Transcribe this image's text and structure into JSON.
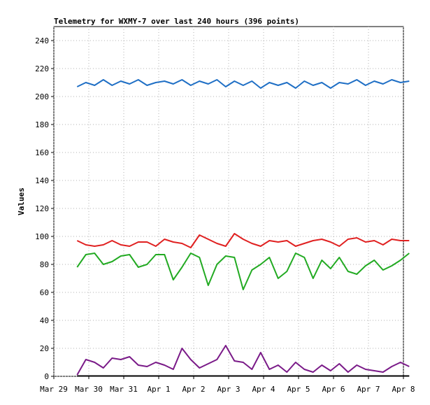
{
  "chart_data": {
    "type": "line",
    "title": "Telemetry for WXMY-7 over last 240 hours (396 points)",
    "xlabel": "",
    "ylabel": "Values",
    "ylim": [
      0,
      250
    ],
    "yticks": [
      0,
      20,
      40,
      60,
      80,
      100,
      120,
      140,
      160,
      180,
      200,
      220,
      240
    ],
    "xlim": [
      "2025-03-29T00:00",
      "2025-04-08T00:00"
    ],
    "xticks": [
      {
        "date": "2025-03-29",
        "label": "Mar 29"
      },
      {
        "date": "2025-03-30",
        "label": "Mar 30"
      },
      {
        "date": "2025-03-31",
        "label": "Mar 31"
      },
      {
        "date": "2025-04-01",
        "label": "Apr 1"
      },
      {
        "date": "2025-04-02",
        "label": "Apr 2"
      },
      {
        "date": "2025-04-03",
        "label": "Apr 3"
      },
      {
        "date": "2025-04-04",
        "label": "Apr 4"
      },
      {
        "date": "2025-04-05",
        "label": "Apr 5"
      },
      {
        "date": "2025-04-06",
        "label": "Apr 6"
      },
      {
        "date": "2025-04-07",
        "label": "Apr 7"
      },
      {
        "date": "2025-04-08",
        "label": "Apr 8"
      }
    ],
    "x": [
      "2025-03-29T16:00",
      "2025-03-29T22:00",
      "2025-03-30T04:00",
      "2025-03-30T10:00",
      "2025-03-30T16:00",
      "2025-03-30T22:00",
      "2025-03-31T04:00",
      "2025-03-31T10:00",
      "2025-03-31T16:00",
      "2025-03-31T22:00",
      "2025-04-01T04:00",
      "2025-04-01T10:00",
      "2025-04-01T16:00",
      "2025-04-01T22:00",
      "2025-04-02T04:00",
      "2025-04-02T10:00",
      "2025-04-02T16:00",
      "2025-04-02T22:00",
      "2025-04-03T04:00",
      "2025-04-03T10:00",
      "2025-04-03T16:00",
      "2025-04-03T22:00",
      "2025-04-04T04:00",
      "2025-04-04T10:00",
      "2025-04-04T16:00",
      "2025-04-04T22:00",
      "2025-04-05T04:00",
      "2025-04-05T10:00",
      "2025-04-05T16:00",
      "2025-04-05T22:00",
      "2025-04-06T04:00",
      "2025-04-06T10:00",
      "2025-04-06T16:00",
      "2025-04-06T22:00",
      "2025-04-07T04:00",
      "2025-04-07T10:00",
      "2025-04-07T16:00",
      "2025-04-07T22:00",
      "2025-04-08T04:00"
    ],
    "series": [
      {
        "color": "#1f6fc5",
        "values": [
          207,
          210,
          208,
          212,
          208,
          211,
          209,
          212,
          208,
          210,
          211,
          209,
          212,
          208,
          211,
          209,
          212,
          207,
          211,
          208,
          211,
          206,
          210,
          208,
          210,
          206,
          211,
          208,
          210,
          206,
          210,
          209,
          212,
          208,
          211,
          209,
          212,
          210,
          211
        ]
      },
      {
        "color": "#e02020",
        "values": [
          97,
          94,
          93,
          94,
          97,
          94,
          93,
          96,
          96,
          93,
          98,
          96,
          95,
          92,
          101,
          98,
          95,
          93,
          102,
          98,
          95,
          93,
          97,
          96,
          97,
          93,
          95,
          97,
          98,
          96,
          93,
          98,
          99,
          96,
          97,
          94,
          98,
          97,
          97
        ]
      },
      {
        "color": "#22aa22",
        "values": [
          78,
          87,
          88,
          80,
          82,
          86,
          87,
          78,
          80,
          87,
          87,
          69,
          78,
          88,
          85,
          65,
          80,
          86,
          85,
          62,
          76,
          80,
          85,
          70,
          75,
          88,
          85,
          70,
          83,
          77,
          85,
          75,
          73,
          79,
          83,
          76,
          79,
          83,
          88
        ]
      },
      {
        "color": "#7a1a88",
        "values": [
          1,
          12,
          10,
          6,
          13,
          12,
          14,
          8,
          7,
          10,
          8,
          5,
          20,
          12,
          6,
          9,
          12,
          22,
          11,
          10,
          5,
          17,
          5,
          8,
          3,
          10,
          5,
          3,
          8,
          4,
          9,
          3,
          8,
          5,
          4,
          3,
          7,
          10,
          7
        ]
      }
    ]
  }
}
